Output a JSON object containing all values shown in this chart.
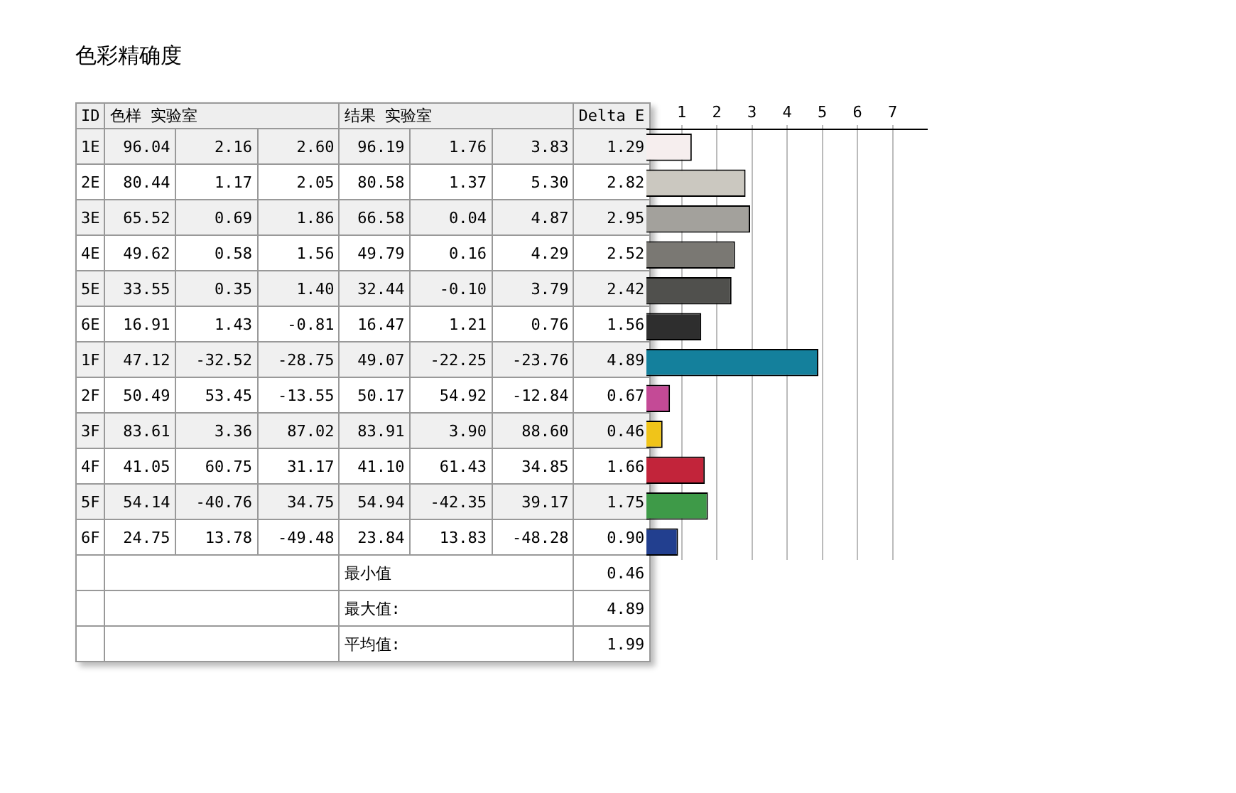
{
  "chart_data": {
    "type": "bar",
    "orientation": "horizontal",
    "title": "色彩精确度",
    "ylabel": "ID",
    "xlabel": "Delta E",
    "categories": [
      "1E",
      "2E",
      "3E",
      "4E",
      "5E",
      "6E",
      "1F",
      "2F",
      "3F",
      "4F",
      "5F",
      "6F"
    ],
    "values": [
      1.29,
      2.82,
      2.95,
      2.52,
      2.42,
      1.56,
      4.89,
      0.67,
      0.46,
      1.66,
      1.75,
      0.9
    ],
    "value_labels": [
      "1.29",
      "2.82",
      "2.95",
      "2.52",
      "2.42",
      "1.56",
      "4.89",
      "0.67",
      "0.46",
      "1.66",
      "1.75",
      "0.90"
    ],
    "colors": [
      "#f6eeee",
      "#cbc8c0",
      "#a3a19c",
      "#7a7873",
      "#50504d",
      "#2e2e2e",
      "#14809c",
      "#c44a96",
      "#f0c419",
      "#c2243a",
      "#3e9a48",
      "#223f8f"
    ],
    "x2lim": [
      0,
      8
    ],
    "x2ticks": [
      1,
      2,
      3,
      4,
      5,
      6,
      7
    ],
    "grid": "x",
    "legend": false,
    "annotations": [
      "色样 实验室",
      "结果 实验室",
      "96.04 2.16 2.60 96.19 1.76 3.83",
      "80.44 1.17 2.05 80.58 1.37 5.30",
      "65.52 0.69 1.86 66.58 0.04 4.87",
      "49.62 0.58 1.56 49.79 0.16 4.29",
      "33.55 0.35 1.40 32.44 -0.10 3.79",
      "16.91 1.43 -0.81 16.47 1.21 0.76",
      "47.12 -32.52 -28.75 49.07 -22.25 -23.76",
      "50.49 53.45 -13.55 50.17 54.92 -12.84",
      "83.61 3.36 87.02 83.91 3.90 88.60",
      "41.05 60.75 31.17 41.10 61.43 34.85",
      "54.14 -40.76 34.75 54.94 -42.35 39.17",
      "24.75 13.78 -49.48 23.84 13.83 -48.28",
      "最小值 0.46",
      "最大值: 4.89",
      "平均值: 1.99"
    ]
  }
}
